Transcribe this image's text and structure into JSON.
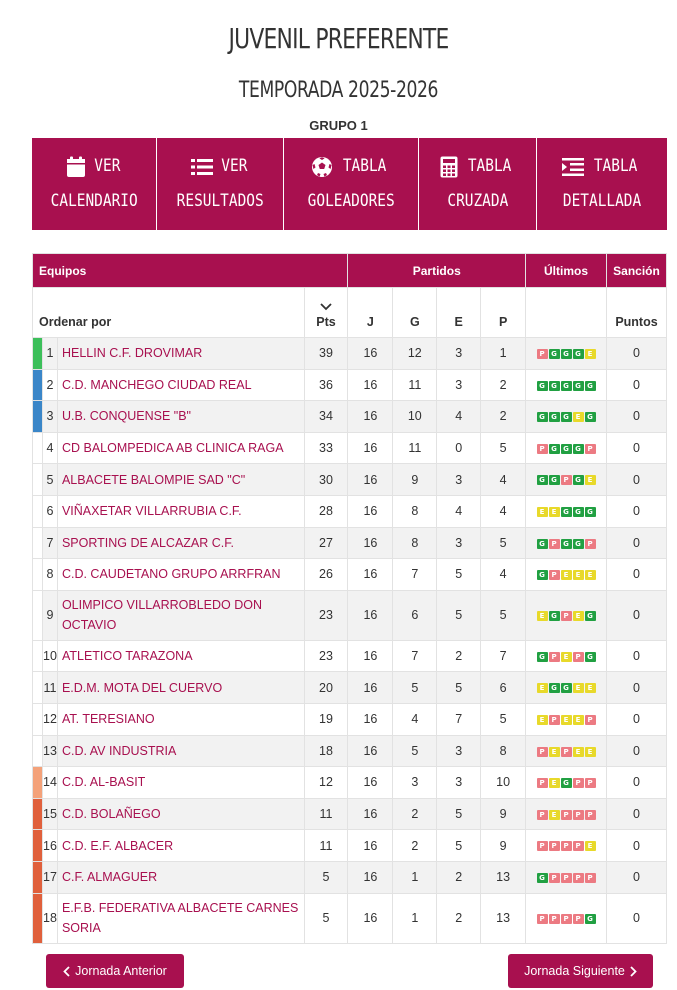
{
  "header": {
    "title": "JUVENIL PREFERENTE",
    "season": "TEMPORADA 2025-2026",
    "group": "GRUPO 1"
  },
  "nav": [
    {
      "line1": "VER",
      "line2": "CALENDARIO",
      "icon": "calendar-icon"
    },
    {
      "line1": "VER",
      "line2": "RESULTADOS",
      "icon": "list-icon"
    },
    {
      "line1": "TABLA",
      "line2": "GOLEADORES",
      "icon": "soccer-ball-icon"
    },
    {
      "line1": "TABLA",
      "line2": "CRUZADA",
      "icon": "calculator-icon"
    },
    {
      "line1": "TABLA",
      "line2": "DETALLADA",
      "icon": "indent-icon"
    }
  ],
  "table": {
    "group_headers": {
      "equipos": "Equipos",
      "partidos": "Partidos",
      "ultimos": "Últimos",
      "sancion": "Sanción"
    },
    "columns": {
      "order_by": "Ordenar por",
      "pts": "Pts",
      "j": "J",
      "g": "G",
      "e": "E",
      "p": "P",
      "puntos": "Puntos"
    },
    "form_colors": {
      "G": "#21a042",
      "E": "#e8d92a",
      "P": "#ec7a82"
    },
    "rows": [
      {
        "pos": "1",
        "team": "HELLIN C.F. DROVIMAR",
        "pts": "39",
        "j": "16",
        "g": "12",
        "e": "3",
        "p": "1",
        "form": [
          "P",
          "G",
          "G",
          "G",
          "E"
        ],
        "sancion": "0",
        "bar": "#3cbf5a"
      },
      {
        "pos": "2",
        "team": "C.D. MANCHEGO CIUDAD REAL",
        "pts": "36",
        "j": "16",
        "g": "11",
        "e": "3",
        "p": "2",
        "form": [
          "G",
          "G",
          "G",
          "G",
          "G"
        ],
        "sancion": "0",
        "bar": "#3a86c8"
      },
      {
        "pos": "3",
        "team": "U.B. CONQUENSE \"B\"",
        "pts": "34",
        "j": "16",
        "g": "10",
        "e": "4",
        "p": "2",
        "form": [
          "G",
          "G",
          "G",
          "E",
          "G"
        ],
        "sancion": "0",
        "bar": "#3a86c8"
      },
      {
        "pos": "4",
        "team": "CD BALOMPEDICA AB CLINICA RAGA",
        "pts": "33",
        "j": "16",
        "g": "11",
        "e": "0",
        "p": "5",
        "form": [
          "P",
          "G",
          "G",
          "G",
          "P"
        ],
        "sancion": "0",
        "bar": ""
      },
      {
        "pos": "5",
        "team": "ALBACETE BALOMPIE SAD \"C\"",
        "pts": "30",
        "j": "16",
        "g": "9",
        "e": "3",
        "p": "4",
        "form": [
          "G",
          "G",
          "P",
          "G",
          "E"
        ],
        "sancion": "0",
        "bar": ""
      },
      {
        "pos": "6",
        "team": "VIÑAXETAR VILLARRUBIA C.F.",
        "pts": "28",
        "j": "16",
        "g": "8",
        "e": "4",
        "p": "4",
        "form": [
          "E",
          "E",
          "G",
          "G",
          "G"
        ],
        "sancion": "0",
        "bar": ""
      },
      {
        "pos": "7",
        "team": "SPORTING DE ALCAZAR C.F.",
        "pts": "27",
        "j": "16",
        "g": "8",
        "e": "3",
        "p": "5",
        "form": [
          "G",
          "P",
          "G",
          "G",
          "P"
        ],
        "sancion": "0",
        "bar": ""
      },
      {
        "pos": "8",
        "team": "C.D. CAUDETANO GRUPO ARRFRAN",
        "pts": "26",
        "j": "16",
        "g": "7",
        "e": "5",
        "p": "4",
        "form": [
          "G",
          "P",
          "E",
          "E",
          "E"
        ],
        "sancion": "0",
        "bar": ""
      },
      {
        "pos": "9",
        "team": "OLIMPICO VILLARROBLEDO DON OCTAVIO",
        "pts": "23",
        "j": "16",
        "g": "6",
        "e": "5",
        "p": "5",
        "form": [
          "E",
          "G",
          "P",
          "E",
          "G"
        ],
        "sancion": "0",
        "bar": "",
        "tall": true
      },
      {
        "pos": "10",
        "team": "ATLETICO TARAZONA",
        "pts": "23",
        "j": "16",
        "g": "7",
        "e": "2",
        "p": "7",
        "form": [
          "G",
          "P",
          "E",
          "P",
          "G"
        ],
        "sancion": "0",
        "bar": ""
      },
      {
        "pos": "11",
        "team": "E.D.M. MOTA DEL CUERVO",
        "pts": "20",
        "j": "16",
        "g": "5",
        "e": "5",
        "p": "6",
        "form": [
          "E",
          "G",
          "G",
          "E",
          "E"
        ],
        "sancion": "0",
        "bar": ""
      },
      {
        "pos": "12",
        "team": "AT. TERESIANO",
        "pts": "19",
        "j": "16",
        "g": "4",
        "e": "7",
        "p": "5",
        "form": [
          "E",
          "P",
          "E",
          "E",
          "P"
        ],
        "sancion": "0",
        "bar": ""
      },
      {
        "pos": "13",
        "team": "C.D. AV INDUSTRIA",
        "pts": "18",
        "j": "16",
        "g": "5",
        "e": "3",
        "p": "8",
        "form": [
          "P",
          "E",
          "P",
          "E",
          "E"
        ],
        "sancion": "0",
        "bar": ""
      },
      {
        "pos": "14",
        "team": "C.D. AL-BASIT",
        "pts": "12",
        "j": "16",
        "g": "3",
        "e": "3",
        "p": "10",
        "form": [
          "P",
          "E",
          "G",
          "P",
          "P"
        ],
        "sancion": "0",
        "bar": "#f4a27a"
      },
      {
        "pos": "15",
        "team": "C.D. BOLAÑEGO",
        "pts": "11",
        "j": "16",
        "g": "2",
        "e": "5",
        "p": "9",
        "form": [
          "P",
          "E",
          "P",
          "P",
          "P"
        ],
        "sancion": "0",
        "bar": "#e0603c"
      },
      {
        "pos": "16",
        "team": "C.D. E.F. ALBACER",
        "pts": "11",
        "j": "16",
        "g": "2",
        "e": "5",
        "p": "9",
        "form": [
          "P",
          "P",
          "P",
          "P",
          "E"
        ],
        "sancion": "0",
        "bar": "#e0603c"
      },
      {
        "pos": "17",
        "team": "C.F. ALMAGUER",
        "pts": "5",
        "j": "16",
        "g": "1",
        "e": "2",
        "p": "13",
        "form": [
          "G",
          "P",
          "P",
          "P",
          "P"
        ],
        "sancion": "0",
        "bar": "#e0603c"
      },
      {
        "pos": "18",
        "team": "E.F.B. FEDERATIVA ALBACETE CARNES SORIA",
        "pts": "5",
        "j": "16",
        "g": "1",
        "e": "2",
        "p": "13",
        "form": [
          "P",
          "P",
          "P",
          "P",
          "G"
        ],
        "sancion": "0",
        "bar": "#e0603c",
        "tall": true
      }
    ]
  },
  "pager": {
    "prev": "Jornada Anterior",
    "next": "Jornada Siguiente"
  }
}
